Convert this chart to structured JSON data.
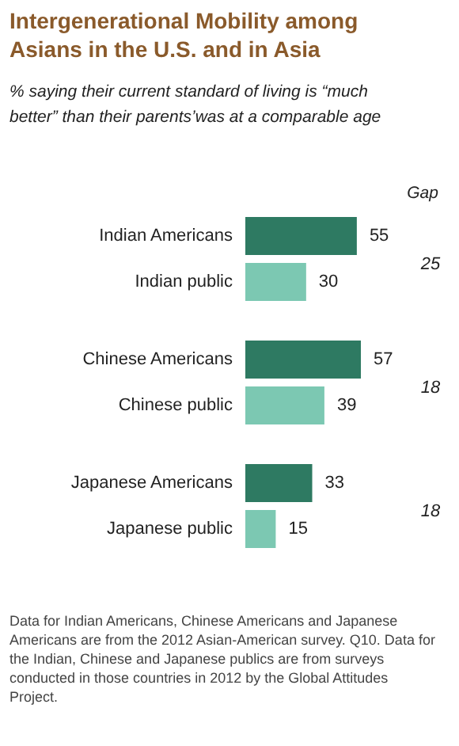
{
  "chart_data": {
    "type": "bar",
    "orientation": "horizontal",
    "title": "Intergenerational Mobility among Asians in the U.S. and in Asia",
    "subtitle": "% saying their current standard of living is “much better” than their parents’was at a comparable age",
    "categories": [
      "Indian Americans",
      "Indian public",
      "Chinese Americans",
      "Chinese public",
      "Japanese Americans",
      "Japanese public"
    ],
    "values": [
      55,
      30,
      57,
      39,
      33,
      15
    ],
    "colors": [
      "#2e7a62",
      "#7cc8b2",
      "#2e7a62",
      "#7cc8b2",
      "#2e7a62",
      "#7cc8b2"
    ],
    "data_labels": true,
    "annotations": [
      "Gap",
      "25",
      "18",
      "18",
      "Data for Indian Americans, Chinese Americans and Japanese Americans are from the 2012 Asian-American survey. Q10. Data for the Indian, Chinese and Japanese publics are from surveys conducted in those countries in 2012 by the Global Attitudes Project."
    ]
  }
}
